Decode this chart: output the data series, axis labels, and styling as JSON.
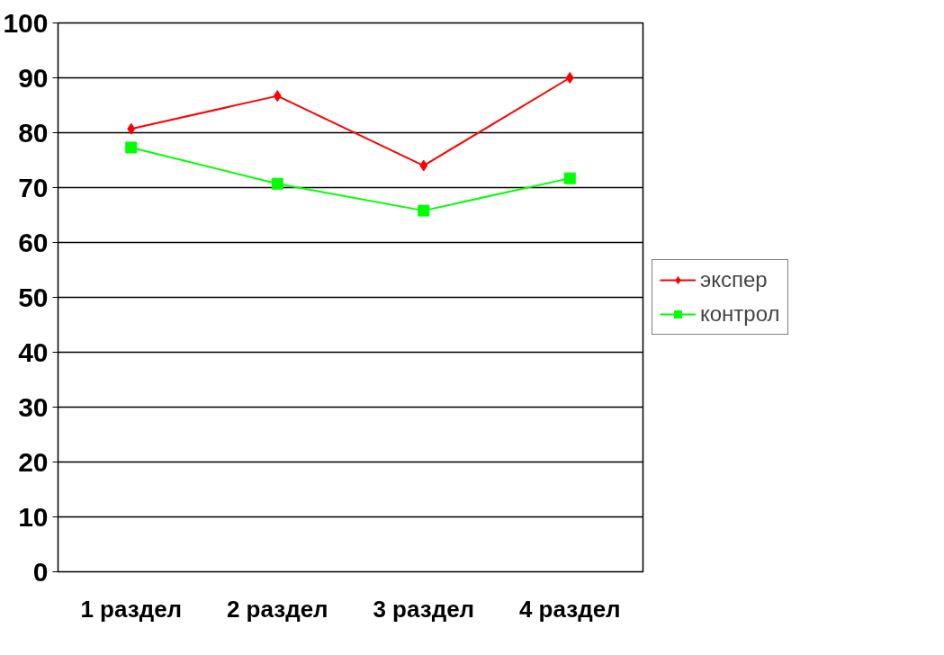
{
  "chart_data": {
    "type": "line",
    "categories": [
      "1 раздел",
      "2 раздел",
      "3 раздел",
      "4 раздел"
    ],
    "series": [
      {
        "name": "экспер",
        "color": "#ff0000",
        "marker": "diamond",
        "values": [
          80.7,
          86.7,
          74.0,
          90.0
        ]
      },
      {
        "name": "контрол",
        "color": "#00ff00",
        "marker": "square",
        "values": [
          77.3,
          70.7,
          65.8,
          71.7
        ]
      }
    ],
    "ylim": [
      0,
      100
    ],
    "yticks": [
      0,
      10,
      20,
      30,
      40,
      50,
      60,
      70,
      80,
      90,
      100
    ],
    "grid": "y",
    "legend": "right",
    "line_style": "solid"
  }
}
